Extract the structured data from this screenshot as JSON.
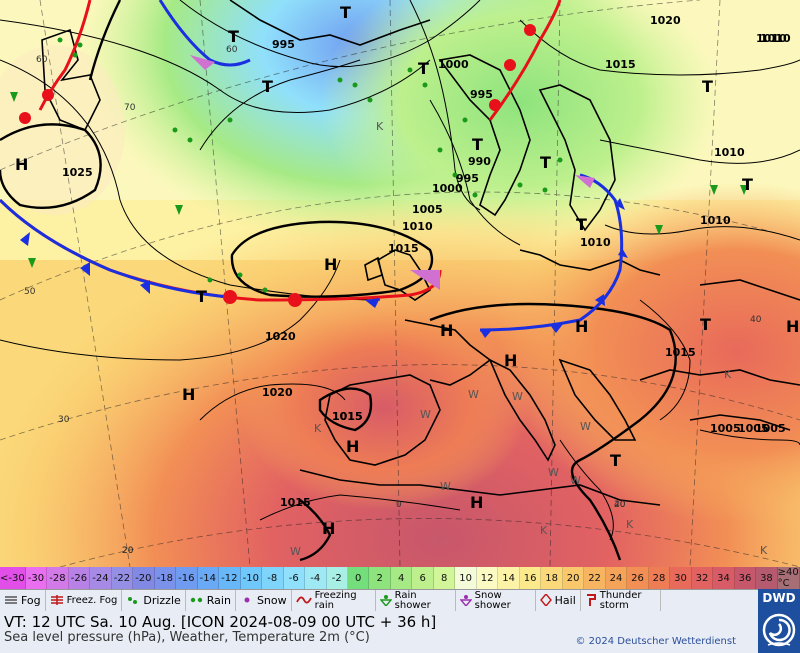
{
  "colors": {
    "coast": "#000000",
    "isobar": "#000000",
    "cold_front": "#1a2fe0",
    "warm_front": "#e8101a",
    "occlusion": "#d070d0",
    "dwd_blue": "#1d4f9e"
  },
  "isobars": [
    {
      "value": "1025"
    },
    {
      "value": "1020"
    },
    {
      "value": "1020"
    },
    {
      "value": "1015"
    },
    {
      "value": "1015"
    },
    {
      "value": "1010"
    },
    {
      "value": "1010"
    },
    {
      "value": "1010"
    },
    {
      "value": "1010"
    },
    {
      "value": "1005"
    },
    {
      "value": "1005"
    },
    {
      "value": "1000"
    },
    {
      "value": "1000"
    },
    {
      "value": "995"
    },
    {
      "value": "995"
    },
    {
      "value": "995"
    },
    {
      "value": "990"
    },
    {
      "value": "1015"
    },
    {
      "value": "1015"
    },
    {
      "value": "1015"
    },
    {
      "value": "1020"
    },
    {
      "value": "1010"
    },
    {
      "value": "1005"
    },
    {
      "value": "1005"
    },
    {
      "value": "1010"
    },
    {
      "value": "1015"
    }
  ],
  "pressure_centers": [
    {
      "type": "H"
    },
    {
      "type": "H"
    },
    {
      "type": "H"
    },
    {
      "type": "H"
    },
    {
      "type": "H"
    },
    {
      "type": "H"
    },
    {
      "type": "H"
    },
    {
      "type": "H"
    },
    {
      "type": "H"
    },
    {
      "type": "H"
    },
    {
      "type": "T"
    },
    {
      "type": "T"
    },
    {
      "type": "T"
    },
    {
      "type": "T"
    },
    {
      "type": "T"
    },
    {
      "type": "T"
    },
    {
      "type": "T"
    },
    {
      "type": "T"
    },
    {
      "type": "T"
    },
    {
      "type": "T"
    },
    {
      "type": "T"
    },
    {
      "type": "T"
    }
  ],
  "temperature_ticks": [
    "60",
    "70",
    "50",
    "40",
    "30",
    "40",
    "20",
    "0",
    "20",
    "20",
    "60"
  ],
  "weather_labels": [
    "K",
    "W",
    "K",
    "W",
    "W",
    "W",
    "W",
    "W",
    "K",
    "W",
    "W",
    "K",
    "K",
    "K"
  ],
  "temperature_scale": [
    {
      "label": "<-30",
      "color": "#e24fe8"
    },
    {
      "label": "-30",
      "color": "#e96ef0"
    },
    {
      "label": "-28",
      "color": "#d17ae8"
    },
    {
      "label": "-26",
      "color": "#b881e6"
    },
    {
      "label": "-24",
      "color": "#a78ae6"
    },
    {
      "label": "-22",
      "color": "#968fe6"
    },
    {
      "label": "-20",
      "color": "#8289e4"
    },
    {
      "label": "-18",
      "color": "#7a92ea"
    },
    {
      "label": "-16",
      "color": "#6f9bf0"
    },
    {
      "label": "-14",
      "color": "#6aa9f5"
    },
    {
      "label": "-12",
      "color": "#68b7f8"
    },
    {
      "label": "-10",
      "color": "#6fc7fa"
    },
    {
      "label": "-8",
      "color": "#7fd4fb"
    },
    {
      "label": "-6",
      "color": "#90e0fb"
    },
    {
      "label": "-4",
      "color": "#9fe9f5"
    },
    {
      "label": "-2",
      "color": "#a8f0e6"
    },
    {
      "label": "0",
      "color": "#74dd7c"
    },
    {
      "label": "2",
      "color": "#8ee37d"
    },
    {
      "label": "4",
      "color": "#a6ea85"
    },
    {
      "label": "6",
      "color": "#bdf08d"
    },
    {
      "label": "8",
      "color": "#d2f59a"
    },
    {
      "label": "10",
      "color": "#f3fbd9"
    },
    {
      "label": "12",
      "color": "#fbfac3"
    },
    {
      "label": "14",
      "color": "#fdf3a7"
    },
    {
      "label": "16",
      "color": "#fce98c"
    },
    {
      "label": "18",
      "color": "#fbd97a"
    },
    {
      "label": "20",
      "color": "#f9c76c"
    },
    {
      "label": "22",
      "color": "#f7b561"
    },
    {
      "label": "24",
      "color": "#f5a358"
    },
    {
      "label": "26",
      "color": "#f28f55"
    },
    {
      "label": "28",
      "color": "#ee7c55"
    },
    {
      "label": "30",
      "color": "#e86a5a"
    },
    {
      "label": "32",
      "color": "#e26262"
    },
    {
      "label": "34",
      "color": "#d75c67"
    },
    {
      "label": "36",
      "color": "#c7576b"
    },
    {
      "label": "38",
      "color": "#b65a70"
    },
    {
      "label": "≥40 °C",
      "color": "#a86e76"
    }
  ],
  "symbol_legend": [
    {
      "label": "Fog",
      "icon": "fog-icon"
    },
    {
      "label": "Freez. Fog",
      "icon": "freezing-fog-icon"
    },
    {
      "label": "Drizzle",
      "icon": "drizzle-icon"
    },
    {
      "label": "Rain",
      "icon": "rain-icon"
    },
    {
      "label": "Snow",
      "icon": "snow-icon"
    },
    {
      "label": "Freezing rain",
      "icon": "freezing-rain-icon"
    },
    {
      "label": "Rain shower",
      "icon": "rain-shower-icon"
    },
    {
      "label": "Snow shower",
      "icon": "snow-shower-icon"
    },
    {
      "label": "Hail",
      "icon": "hail-icon"
    },
    {
      "label": "Thunder storm",
      "icon": "thunderstorm-icon"
    }
  ],
  "footer": {
    "valid_time": "VT: 12 UTC Sa.  10 Aug. [ICON 2024-08-09  00 UTC + 36 h]",
    "description": "Sea level pressure (hPa), Weather, Temperature 2m (°C)",
    "copyright": "© 2024 Deutscher Wetterdienst",
    "logo_text": "DWD"
  }
}
